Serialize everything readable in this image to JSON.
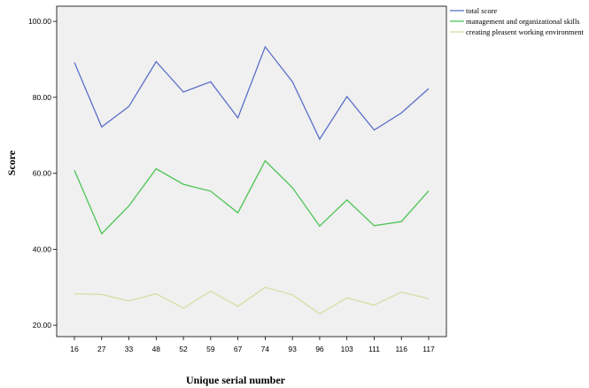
{
  "chart_data": {
    "type": "line",
    "xlabel": "Unique serial number",
    "ylabel": "Score",
    "categories": [
      "16",
      "27",
      "33",
      "48",
      "52",
      "59",
      "67",
      "74",
      "93",
      "96",
      "103",
      "111",
      "116",
      "117"
    ],
    "ylim": [
      17,
      104
    ],
    "yticks": [
      20,
      40,
      60,
      80,
      100
    ],
    "ytick_labels": [
      "20.00",
      "40.00",
      "60.00",
      "80.00",
      "100.00"
    ],
    "grid": false,
    "legend_position": "top-right",
    "series": [
      {
        "name": "total score",
        "color": "#5b6fc8",
        "values": [
          89.2,
          72.2,
          77.6,
          89.4,
          81.4,
          84.1,
          74.6,
          93.3,
          84.1,
          69.0,
          80.2,
          71.4,
          75.9,
          82.3
        ]
      },
      {
        "name": "management and organizational skills",
        "color": "#4cc453",
        "values": [
          60.8,
          44.1,
          51.4,
          61.2,
          57.1,
          55.3,
          49.6,
          63.3,
          56.2,
          46.1,
          53.0,
          46.2,
          47.3,
          55.4
        ]
      },
      {
        "name": "creating pleasent working environment",
        "color": "#d8dca4",
        "values": [
          28.3,
          28.1,
          26.4,
          28.3,
          24.5,
          29.0,
          25.0,
          30.0,
          28.0,
          23.0,
          27.2,
          25.3,
          28.7,
          27.0
        ]
      }
    ]
  }
}
